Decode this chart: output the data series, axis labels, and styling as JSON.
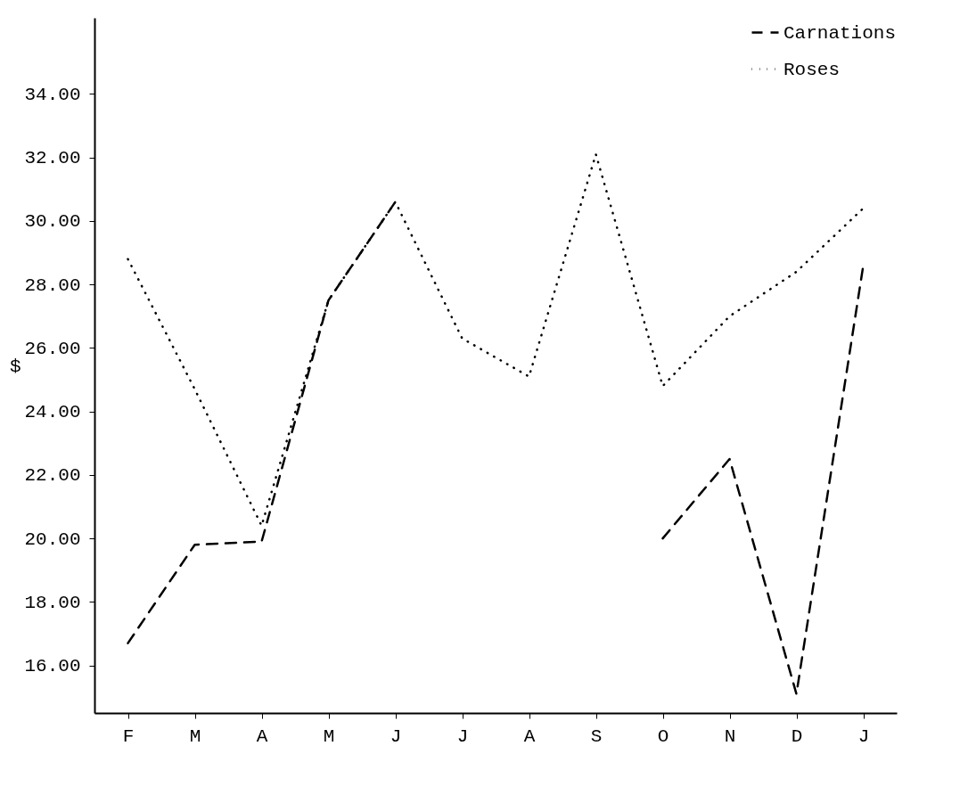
{
  "chart_data": {
    "type": "line",
    "ylabel": "$",
    "categories": [
      "F",
      "M",
      "A",
      "M",
      "J",
      "J",
      "A",
      "S",
      "O",
      "N",
      "D",
      "J"
    ],
    "series": [
      {
        "name": "Carnations",
        "color": "#000000",
        "line_style": "dashed",
        "values": [
          16.7,
          19.8,
          19.9,
          27.5,
          30.6,
          null,
          null,
          null,
          20.0,
          22.5,
          15.1,
          28.6
        ]
      },
      {
        "name": "Roses",
        "color": "#000000",
        "line_style": "dotted",
        "values": [
          28.8,
          24.7,
          20.4,
          27.5,
          30.6,
          26.3,
          25.1,
          32.1,
          24.8,
          27.0,
          28.4,
          30.4
        ]
      }
    ],
    "ylim": [
      14.5,
      36.4
    ],
    "yticks": [
      {
        "value": 16,
        "label": "16.00"
      },
      {
        "value": 18,
        "label": "18.00"
      },
      {
        "value": 20,
        "label": "20.00"
      },
      {
        "value": 22,
        "label": "22.00"
      },
      {
        "value": 24,
        "label": "24.00"
      },
      {
        "value": 26,
        "label": "26.00"
      },
      {
        "value": 28,
        "label": "28.00"
      },
      {
        "value": 30,
        "label": "30.00"
      },
      {
        "value": 32,
        "label": "32.00"
      },
      {
        "value": 34,
        "label": "34.00"
      }
    ],
    "grid": false,
    "legend": "top right",
    "marker": "none"
  }
}
